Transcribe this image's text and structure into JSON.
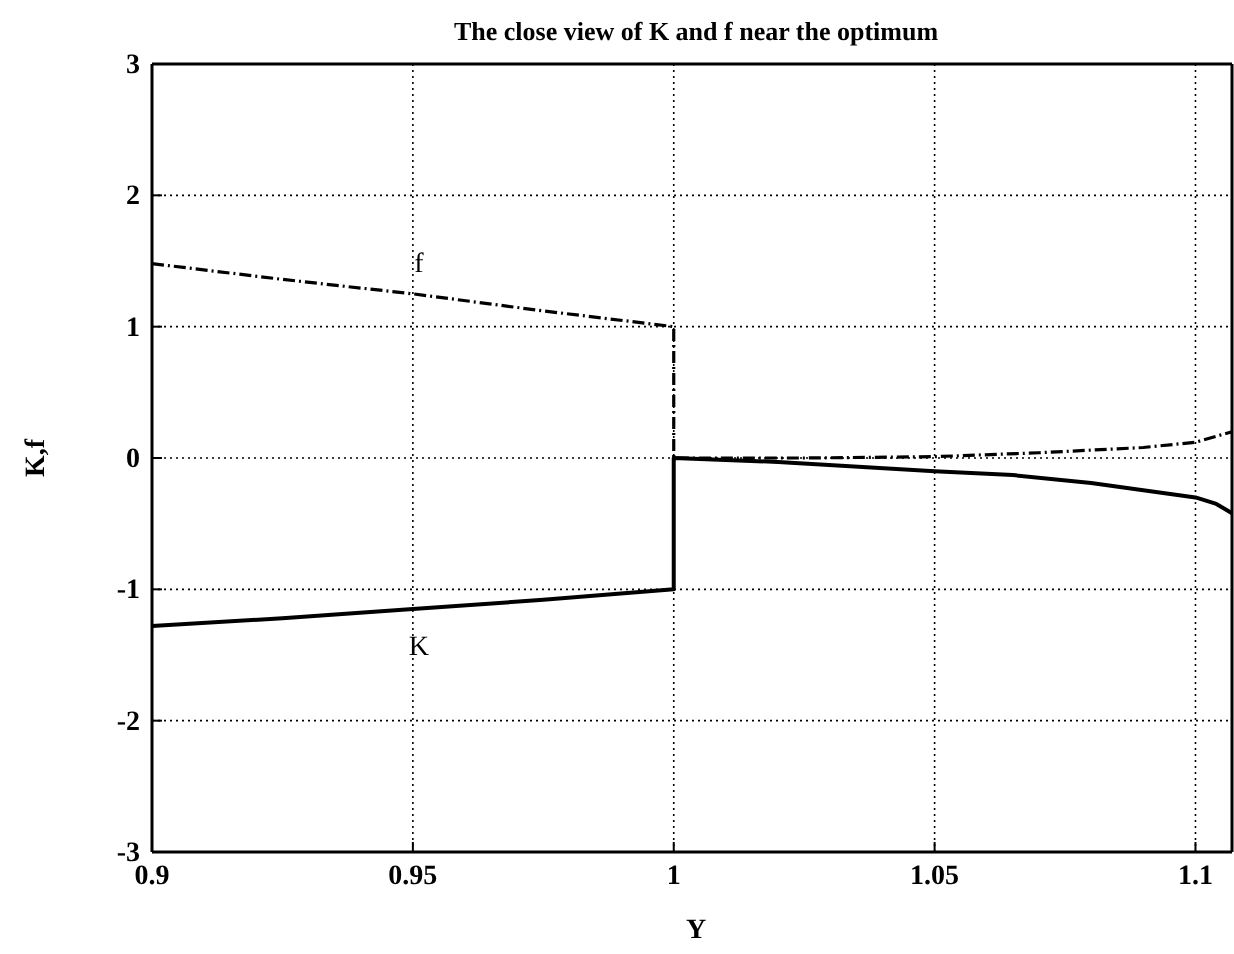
{
  "chart_data": {
    "type": "line",
    "title": "The close view of K and f near the optimum",
    "xlabel": "Y",
    "ylabel": "K,f",
    "xlim": [
      0.9,
      1.107
    ],
    "xticks": [
      0.9,
      0.95,
      1,
      1.05,
      1.1
    ],
    "ylim": [
      -3,
      3
    ],
    "yticks": [
      -3,
      -2,
      -1,
      0,
      1,
      2,
      3
    ],
    "grid": true,
    "series": [
      {
        "name": "f",
        "color": "#000000",
        "line_style": "dashed",
        "x": [
          0.9,
          0.925,
          0.95,
          0.975,
          1.0,
          1.0,
          1.025,
          1.05,
          1.07,
          1.09,
          1.1,
          1.107
        ],
        "values": [
          1.48,
          1.36,
          1.25,
          1.12,
          1.0,
          0.0,
          0.0,
          0.01,
          0.04,
          0.08,
          0.12,
          0.2
        ]
      },
      {
        "name": "K",
        "color": "#000000",
        "line_style": "solid",
        "x": [
          0.9,
          0.925,
          0.95,
          0.975,
          1.0,
          1.0,
          1.02,
          1.05,
          1.065,
          1.08,
          1.1,
          1.104,
          1.107
        ],
        "values": [
          -1.28,
          -1.22,
          -1.15,
          -1.08,
          -1.0,
          0.0,
          -0.03,
          -0.1,
          -0.13,
          -0.19,
          -0.3,
          -0.35,
          -0.42
        ]
      }
    ]
  }
}
